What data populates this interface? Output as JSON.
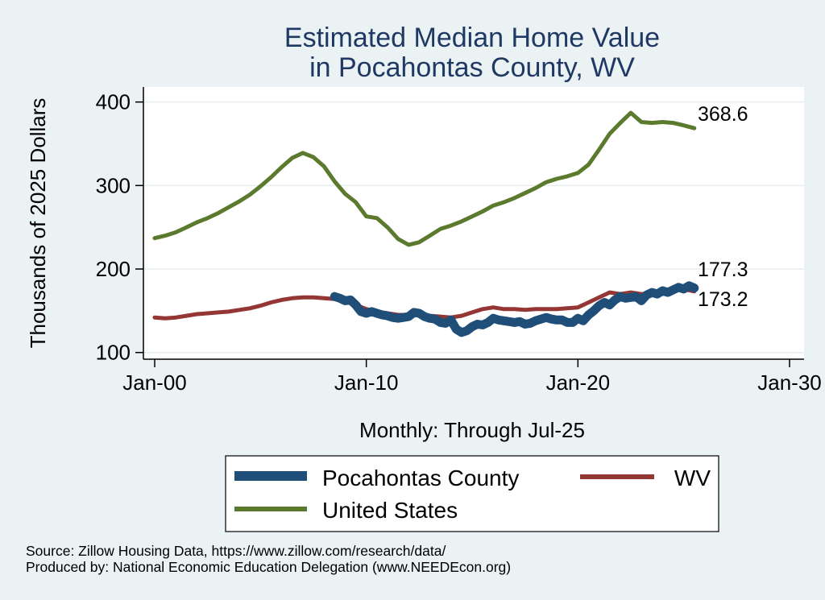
{
  "chart_data": {
    "type": "line",
    "title": [
      "Estimated Median Home Value",
      "in Pocahontas County, WV"
    ],
    "xlabel": "Monthly: Through Jul-25",
    "ylabel": "Thousands of 2025 Dollars",
    "x_ticks": [
      "Jan-00",
      "Jan-10",
      "Jan-20",
      "Jan-30"
    ],
    "xlim": [
      "2000-01",
      "2030-01"
    ],
    "y_ticks": [
      100,
      200,
      300,
      400
    ],
    "ylim": [
      92,
      418
    ],
    "grid": true,
    "legend_position": "bottom",
    "series": [
      {
        "name": "Pocahontas County",
        "color": "#1f4e79",
        "end_label": "177.3",
        "points": [
          [
            "2008-07",
            167
          ],
          [
            "2008-10",
            165
          ],
          [
            "2009-01",
            162
          ],
          [
            "2009-04",
            163
          ],
          [
            "2009-07",
            157
          ],
          [
            "2009-10",
            149
          ],
          [
            "2010-01",
            147
          ],
          [
            "2010-04",
            149
          ],
          [
            "2010-07",
            147
          ],
          [
            "2010-10",
            145
          ],
          [
            "2011-01",
            144
          ],
          [
            "2011-04",
            142
          ],
          [
            "2011-07",
            141
          ],
          [
            "2011-10",
            142
          ],
          [
            "2012-01",
            143
          ],
          [
            "2012-04",
            148
          ],
          [
            "2012-07",
            147
          ],
          [
            "2012-10",
            143
          ],
          [
            "2013-01",
            141
          ],
          [
            "2013-04",
            140
          ],
          [
            "2013-07",
            136
          ],
          [
            "2013-10",
            135
          ],
          [
            "2014-01",
            139
          ],
          [
            "2014-04",
            128
          ],
          [
            "2014-07",
            124
          ],
          [
            "2014-10",
            126
          ],
          [
            "2015-01",
            131
          ],
          [
            "2015-04",
            134
          ],
          [
            "2015-07",
            133
          ],
          [
            "2015-10",
            136
          ],
          [
            "2016-01",
            141
          ],
          [
            "2016-04",
            139
          ],
          [
            "2016-07",
            138
          ],
          [
            "2016-10",
            137
          ],
          [
            "2017-01",
            136
          ],
          [
            "2017-04",
            137
          ],
          [
            "2017-07",
            134
          ],
          [
            "2017-10",
            135
          ],
          [
            "2018-01",
            138
          ],
          [
            "2018-04",
            140
          ],
          [
            "2018-07",
            142
          ],
          [
            "2018-10",
            140
          ],
          [
            "2019-01",
            139
          ],
          [
            "2019-04",
            139
          ],
          [
            "2019-07",
            136
          ],
          [
            "2019-10",
            136
          ],
          [
            "2020-01",
            141
          ],
          [
            "2020-04",
            138
          ],
          [
            "2020-07",
            145
          ],
          [
            "2020-10",
            150
          ],
          [
            "2021-01",
            156
          ],
          [
            "2021-04",
            160
          ],
          [
            "2021-07",
            157
          ],
          [
            "2021-10",
            163
          ],
          [
            "2022-01",
            167
          ],
          [
            "2022-04",
            165
          ],
          [
            "2022-07",
            166
          ],
          [
            "2022-10",
            167
          ],
          [
            "2023-01",
            162
          ],
          [
            "2023-04",
            169
          ],
          [
            "2023-07",
            172
          ],
          [
            "2023-10",
            170
          ],
          [
            "2024-01",
            174
          ],
          [
            "2024-04",
            172
          ],
          [
            "2024-07",
            175
          ],
          [
            "2024-10",
            178
          ],
          [
            "2025-01",
            176
          ],
          [
            "2025-04",
            180
          ],
          [
            "2025-07",
            177.3
          ]
        ]
      },
      {
        "name": "WV",
        "color": "#943634",
        "end_label": "173.2",
        "points": [
          [
            "2000-01",
            142
          ],
          [
            "2000-07",
            141
          ],
          [
            "2001-01",
            142
          ],
          [
            "2001-07",
            144
          ],
          [
            "2002-01",
            146
          ],
          [
            "2002-07",
            147
          ],
          [
            "2003-01",
            148
          ],
          [
            "2003-07",
            149
          ],
          [
            "2004-01",
            151
          ],
          [
            "2004-07",
            153
          ],
          [
            "2005-01",
            156
          ],
          [
            "2005-07",
            160
          ],
          [
            "2006-01",
            163
          ],
          [
            "2006-07",
            165
          ],
          [
            "2007-01",
            166
          ],
          [
            "2007-07",
            166
          ],
          [
            "2008-01",
            165
          ],
          [
            "2008-07",
            164
          ],
          [
            "2009-01",
            161
          ],
          [
            "2009-07",
            157
          ],
          [
            "2010-01",
            152
          ],
          [
            "2010-07",
            149
          ],
          [
            "2011-01",
            147
          ],
          [
            "2011-07",
            145
          ],
          [
            "2012-01",
            145
          ],
          [
            "2012-07",
            145
          ],
          [
            "2013-01",
            144
          ],
          [
            "2013-07",
            143
          ],
          [
            "2014-01",
            142
          ],
          [
            "2014-07",
            144
          ],
          [
            "2015-01",
            148
          ],
          [
            "2015-07",
            152
          ],
          [
            "2016-01",
            154
          ],
          [
            "2016-07",
            152
          ],
          [
            "2017-01",
            152
          ],
          [
            "2017-07",
            151
          ],
          [
            "2018-01",
            152
          ],
          [
            "2018-07",
            152
          ],
          [
            "2019-01",
            152
          ],
          [
            "2019-07",
            153
          ],
          [
            "2020-01",
            154
          ],
          [
            "2020-07",
            160
          ],
          [
            "2021-01",
            166
          ],
          [
            "2021-07",
            172
          ],
          [
            "2022-01",
            170
          ],
          [
            "2022-07",
            172
          ],
          [
            "2023-01",
            170
          ],
          [
            "2023-07",
            171
          ],
          [
            "2024-01",
            173
          ],
          [
            "2024-07",
            174
          ],
          [
            "2025-01",
            176
          ],
          [
            "2025-07",
            173.2
          ]
        ]
      },
      {
        "name": "United States",
        "color": "#5b7a2d",
        "end_label": "368.6",
        "points": [
          [
            "2000-01",
            237
          ],
          [
            "2000-07",
            240
          ],
          [
            "2001-01",
            244
          ],
          [
            "2001-07",
            250
          ],
          [
            "2002-01",
            256
          ],
          [
            "2002-07",
            261
          ],
          [
            "2003-01",
            267
          ],
          [
            "2003-07",
            274
          ],
          [
            "2004-01",
            281
          ],
          [
            "2004-07",
            289
          ],
          [
            "2005-01",
            299
          ],
          [
            "2005-07",
            310
          ],
          [
            "2006-01",
            322
          ],
          [
            "2006-07",
            333
          ],
          [
            "2007-01",
            339
          ],
          [
            "2007-07",
            334
          ],
          [
            "2008-01",
            323
          ],
          [
            "2008-07",
            305
          ],
          [
            "2009-01",
            290
          ],
          [
            "2009-07",
            280
          ],
          [
            "2010-01",
            263
          ],
          [
            "2010-07",
            261
          ],
          [
            "2011-01",
            250
          ],
          [
            "2011-07",
            236
          ],
          [
            "2012-01",
            229
          ],
          [
            "2012-07",
            232
          ],
          [
            "2013-01",
            240
          ],
          [
            "2013-07",
            248
          ],
          [
            "2014-01",
            252
          ],
          [
            "2014-07",
            257
          ],
          [
            "2015-01",
            263
          ],
          [
            "2015-07",
            269
          ],
          [
            "2016-01",
            276
          ],
          [
            "2016-07",
            280
          ],
          [
            "2017-01",
            285
          ],
          [
            "2017-07",
            291
          ],
          [
            "2018-01",
            297
          ],
          [
            "2018-07",
            304
          ],
          [
            "2019-01",
            308
          ],
          [
            "2019-07",
            311
          ],
          [
            "2020-01",
            315
          ],
          [
            "2020-07",
            325
          ],
          [
            "2021-01",
            343
          ],
          [
            "2021-07",
            362
          ],
          [
            "2022-01",
            375
          ],
          [
            "2022-07",
            387
          ],
          [
            "2023-01",
            376
          ],
          [
            "2023-07",
            375
          ],
          [
            "2024-01",
            376
          ],
          [
            "2024-07",
            375
          ],
          [
            "2025-01",
            372
          ],
          [
            "2025-07",
            368.6
          ]
        ]
      }
    ],
    "legend_entries": [
      "Pocahontas County",
      "WV",
      "United States"
    ],
    "source": [
      "Source: Zillow Housing Data, https://www.zillow.com/research/data/",
      "Produced by: National Economic Education Delegation (www.NEEDEcon.org)"
    ]
  }
}
